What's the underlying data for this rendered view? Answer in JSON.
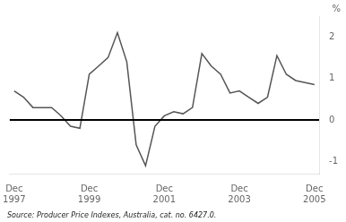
{
  "chart_data": {
    "type": "line",
    "title": "%",
    "source": "Source: Producer Price Indexes, Australia, cat. no. 6427.0.",
    "categories": [
      "Dec\n1997",
      null,
      null,
      null,
      null,
      null,
      null,
      null,
      "Dec\n1999",
      null,
      null,
      null,
      null,
      null,
      null,
      null,
      "Dec\n2001",
      null,
      null,
      null,
      null,
      null,
      null,
      null,
      "Dec\n2003",
      null,
      null,
      null,
      null,
      null,
      null,
      null,
      "Dec\n2005"
    ],
    "values": [
      0.7,
      0.55,
      0.3,
      0.3,
      0.3,
      0.1,
      -0.15,
      -0.2,
      1.1,
      1.3,
      1.5,
      2.1,
      1.4,
      -0.6,
      -1.1,
      -0.15,
      0.1,
      0.2,
      0.15,
      0.3,
      1.6,
      1.3,
      1.1,
      0.65,
      0.7,
      0.55,
      0.4,
      0.55,
      1.55,
      1.1,
      0.95,
      0.9,
      0.85
    ],
    "color": "#555555",
    "reference_line": {
      "value": 0,
      "color": "#000000"
    },
    "ylim": [
      -1.3,
      2.5
    ],
    "yticks": [
      -1,
      0,
      1,
      2
    ],
    "grid": false
  }
}
